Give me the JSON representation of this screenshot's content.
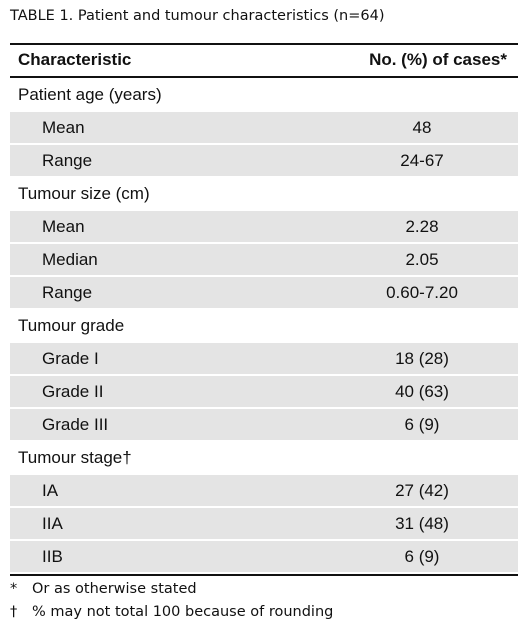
{
  "title": "TABLE 1. Patient and tumour characteristics (n=64)",
  "table": {
    "header": [
      "Characteristic",
      "No. (%) of cases*"
    ],
    "groups": [
      {
        "label": "Patient age (years)",
        "rows": [
          [
            "Mean",
            "48"
          ],
          [
            "Range",
            "24-67"
          ]
        ]
      },
      {
        "label": "Tumour size (cm)",
        "rows": [
          [
            "Mean",
            "2.28"
          ],
          [
            "Median",
            "2.05"
          ],
          [
            "Range",
            "0.60-7.20"
          ]
        ]
      },
      {
        "label": "Tumour grade",
        "rows": [
          [
            "Grade I",
            "18 (28)"
          ],
          [
            "Grade II",
            "40 (63)"
          ],
          [
            "Grade III",
            "6 (9)"
          ]
        ]
      },
      {
        "label": "Tumour stage†",
        "rows": [
          [
            "IA",
            "27 (42)"
          ],
          [
            "IIA",
            "31 (48)"
          ],
          [
            "IIB",
            "6 (9)"
          ]
        ]
      }
    ]
  },
  "footnotes": [
    {
      "symbol": "*",
      "text": "Or as otherwise stated"
    },
    {
      "symbol": "†",
      "text": "% may not total 100 because of rounding"
    }
  ]
}
